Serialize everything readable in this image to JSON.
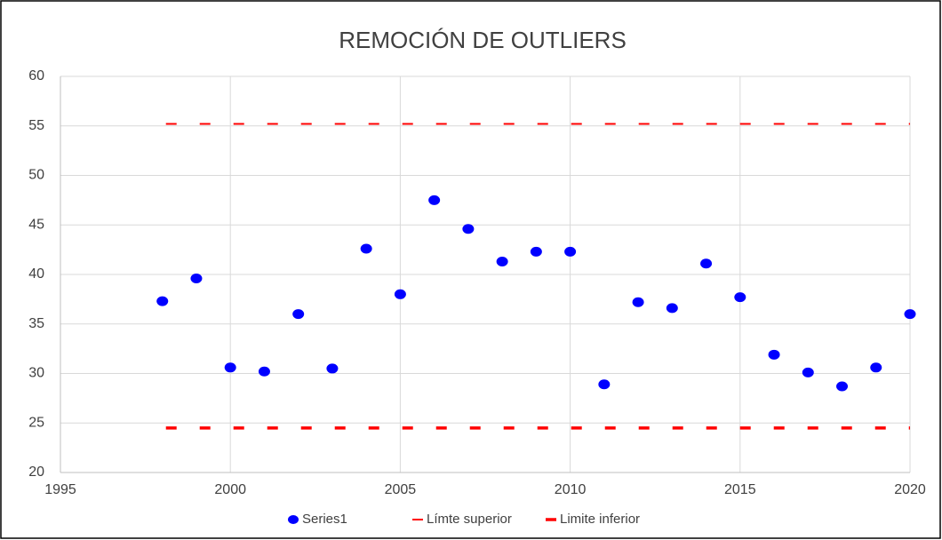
{
  "chart_data": {
    "type": "scatter",
    "title": "REMOCIÓN DE OUTLIERS",
    "x": [
      1998,
      1999,
      2000,
      2001,
      2002,
      2003,
      2004,
      2005,
      2006,
      2007,
      2008,
      2009,
      2010,
      2011,
      2012,
      2013,
      2014,
      2015,
      2016,
      2017,
      2018,
      2019,
      2020
    ],
    "series": [
      {
        "name": "Series1",
        "color": "#0000ff",
        "type": "scatter",
        "values": [
          37.3,
          39.6,
          30.6,
          30.2,
          36,
          30.5,
          42.6,
          38,
          47.5,
          44.6,
          41.3,
          42.3,
          42.3,
          28.9,
          37.2,
          36.6,
          41.1,
          37.7,
          31.9,
          30.1,
          28.7,
          30.6,
          36
        ]
      },
      {
        "name": "Límte superior",
        "color": "#ff0000",
        "type": "line",
        "line_width": 2,
        "values": [
          55.2,
          55.2,
          55.2,
          55.2,
          55.2,
          55.2,
          55.2,
          55.2,
          55.2,
          55.2,
          55.2,
          55.2,
          55.2,
          55.2,
          55.2,
          55.2,
          55.2,
          55.2,
          55.2,
          55.2,
          55.2,
          55.2,
          55.2
        ]
      },
      {
        "name": "Limite inferior",
        "color": "#ff0000",
        "type": "line",
        "line_width": 3.5,
        "values": [
          24.5,
          24.5,
          24.5,
          24.5,
          24.5,
          24.5,
          24.5,
          24.5,
          24.5,
          24.5,
          24.5,
          24.5,
          24.5,
          24.5,
          24.5,
          24.5,
          24.5,
          24.5,
          24.5,
          24.5,
          24.5,
          24.5,
          24.5
        ]
      }
    ],
    "xlim": [
      1995,
      2020
    ],
    "xticks": [
      1995,
      2000,
      2005,
      2010,
      2015,
      2020
    ],
    "ylim": [
      20,
      60
    ],
    "yticks": [
      20,
      25,
      30,
      35,
      40,
      45,
      50,
      55,
      60
    ],
    "grid": true,
    "legend": "bottom"
  }
}
